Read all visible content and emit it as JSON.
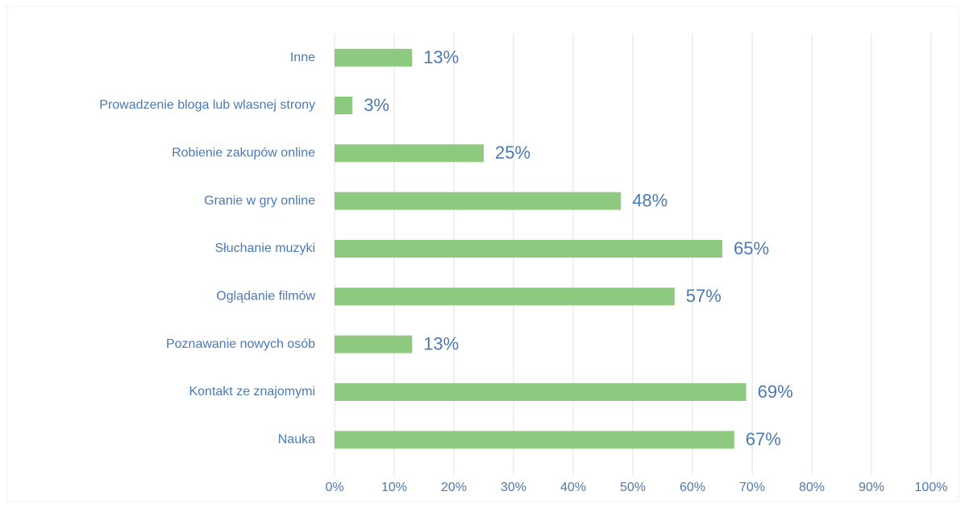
{
  "chart_data": {
    "type": "hbar",
    "categories": [
      "Inne",
      "Prowadzenie bloga lub wlasnej strony",
      "Robienie zakupów online",
      "Granie w gry online",
      "Słuchanie muzyki",
      "Oglądanie filmów",
      "Poznawanie nowych osób",
      "Kontakt ze znajomymi",
      "Nauka"
    ],
    "values": [
      13,
      3,
      25,
      48,
      65,
      57,
      13,
      69,
      67
    ],
    "value_labels": [
      "13%",
      "3%",
      "25%",
      "48%",
      "65%",
      "57%",
      "13%",
      "69%",
      "67%"
    ],
    "color": "#8dca80",
    "xlim": [
      0,
      100
    ],
    "xticks": [
      {
        "value": 0,
        "label": "0%"
      },
      {
        "value": 10,
        "label": "10%"
      },
      {
        "value": 20,
        "label": "20%"
      },
      {
        "value": 30,
        "label": "30%"
      },
      {
        "value": 40,
        "label": "40%"
      },
      {
        "value": 50,
        "label": "50%"
      },
      {
        "value": 60,
        "label": "60%"
      },
      {
        "value": 70,
        "label": "70%"
      },
      {
        "value": 80,
        "label": "80%"
      },
      {
        "value": 90,
        "label": "90%"
      },
      {
        "value": 100,
        "label": "100%"
      }
    ],
    "grid": true
  }
}
